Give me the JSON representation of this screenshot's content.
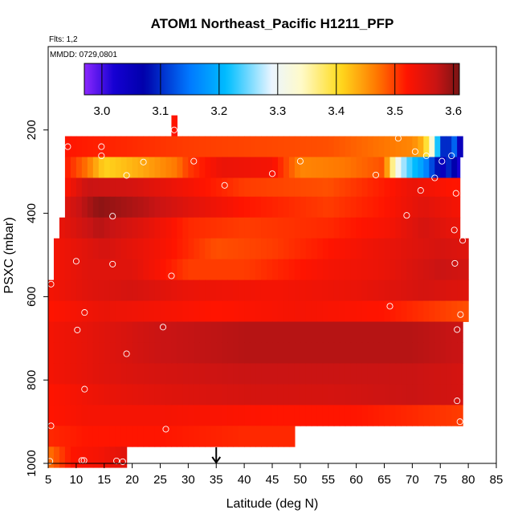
{
  "chart_data": {
    "type": "heatmap",
    "title": "ATOM1 Northeast_Pacific H1211_PFP",
    "subtitle_flights": "Flts: 1,2",
    "subtitle_dates": "MMDD: 0729,0801",
    "xlabel": "Latitude (deg N)",
    "ylabel": "PSXC (mbar)",
    "xlim": [
      5,
      85
    ],
    "ylim": [
      1000,
      0
    ],
    "x_ticks": [
      "5",
      "10",
      "15",
      "20",
      "25",
      "30",
      "35",
      "40",
      "45",
      "50",
      "55",
      "60",
      "65",
      "70",
      "75",
      "80",
      "85"
    ],
    "x_tick_values": [
      5,
      10,
      15,
      20,
      25,
      30,
      35,
      40,
      45,
      50,
      55,
      60,
      65,
      70,
      75,
      80,
      85
    ],
    "y_ticks": [
      "200",
      "400",
      "600",
      "800",
      "1000"
    ],
    "y_tick_values": [
      200,
      400,
      600,
      800,
      1000
    ],
    "colorbar": {
      "min": 2.97,
      "max": 3.61,
      "ticks": [
        "3.0",
        "3.1",
        "3.2",
        "3.3",
        "3.4",
        "3.5",
        "3.6"
      ],
      "tick_values": [
        3.0,
        3.1,
        3.2,
        3.3,
        3.4,
        3.5,
        3.6
      ]
    },
    "marker_latitude": 35,
    "bands": [
      {
        "p_top": 165,
        "p_bot": 215,
        "lat_start": 27,
        "lat_end": 28,
        "stops": [
          [
            27,
            3.52
          ]
        ]
      },
      {
        "p_top": 215,
        "p_bot": 265,
        "lat_start": 8,
        "lat_end": 79,
        "stops": [
          [
            8,
            3.52
          ],
          [
            30,
            3.5
          ],
          [
            55,
            3.49
          ],
          [
            70,
            3.46
          ],
          [
            72,
            3.43
          ],
          [
            73.5,
            3.33
          ],
          [
            74.5,
            3.22
          ],
          [
            75.5,
            3.1
          ],
          [
            76,
            3.02
          ],
          [
            77,
            3.18
          ],
          [
            78.5,
            3.05
          ]
        ]
      },
      {
        "p_top": 265,
        "p_bot": 315,
        "lat_start": 8,
        "lat_end": 78.5,
        "stops": [
          [
            8,
            3.52
          ],
          [
            12,
            3.47
          ],
          [
            15,
            3.41
          ],
          [
            20,
            3.43
          ],
          [
            28,
            3.47
          ],
          [
            30,
            3.5
          ],
          [
            36,
            3.54
          ],
          [
            45,
            3.53
          ],
          [
            50,
            3.46
          ],
          [
            58,
            3.47
          ],
          [
            65,
            3.49
          ],
          [
            66,
            3.4
          ],
          [
            67,
            3.33
          ],
          [
            68,
            3.28
          ],
          [
            70,
            3.22
          ],
          [
            72,
            3.18
          ],
          [
            74,
            3.1
          ],
          [
            75.5,
            3.05
          ],
          [
            77,
            3.12
          ],
          [
            78,
            3.02
          ]
        ]
      },
      {
        "p_top": 315,
        "p_bot": 360,
        "lat_start": 8,
        "lat_end": 78.5,
        "stops": [
          [
            8,
            3.52
          ],
          [
            12,
            3.57
          ],
          [
            20,
            3.56
          ],
          [
            30,
            3.53
          ],
          [
            40,
            3.5
          ],
          [
            55,
            3.49
          ],
          [
            66,
            3.52
          ],
          [
            70,
            3.54
          ],
          [
            77,
            3.52
          ]
        ]
      },
      {
        "p_top": 360,
        "p_bot": 410,
        "lat_start": 8,
        "lat_end": 78.5,
        "stops": [
          [
            8,
            3.55
          ],
          [
            14,
            3.6
          ],
          [
            22,
            3.58
          ],
          [
            30,
            3.55
          ],
          [
            40,
            3.52
          ],
          [
            55,
            3.5
          ],
          [
            65,
            3.52
          ],
          [
            72,
            3.55
          ],
          [
            78,
            3.53
          ]
        ]
      },
      {
        "p_top": 410,
        "p_bot": 460,
        "lat_start": 7,
        "lat_end": 78.5,
        "stops": [
          [
            7,
            3.54
          ],
          [
            14,
            3.58
          ],
          [
            22,
            3.55
          ],
          [
            30,
            3.51
          ],
          [
            40,
            3.5
          ],
          [
            55,
            3.51
          ],
          [
            66,
            3.53
          ],
          [
            72,
            3.56
          ],
          [
            78,
            3.54
          ]
        ]
      },
      {
        "p_top": 460,
        "p_bot": 510,
        "lat_start": 6,
        "lat_end": 80,
        "stops": [
          [
            6,
            3.53
          ],
          [
            15,
            3.56
          ],
          [
            25,
            3.53
          ],
          [
            35,
            3.49
          ],
          [
            45,
            3.5
          ],
          [
            55,
            3.52
          ],
          [
            65,
            3.54
          ],
          [
            75,
            3.56
          ],
          [
            80,
            3.55
          ]
        ]
      },
      {
        "p_top": 510,
        "p_bot": 560,
        "lat_start": 6,
        "lat_end": 80,
        "stops": [
          [
            6,
            3.53
          ],
          [
            12,
            3.55
          ],
          [
            20,
            3.55
          ],
          [
            30,
            3.5
          ],
          [
            40,
            3.5
          ],
          [
            55,
            3.53
          ],
          [
            65,
            3.54
          ],
          [
            75,
            3.57
          ],
          [
            80,
            3.56
          ]
        ]
      },
      {
        "p_top": 560,
        "p_bot": 610,
        "lat_start": 5,
        "lat_end": 80,
        "stops": [
          [
            5,
            3.53
          ],
          [
            12,
            3.55
          ],
          [
            20,
            3.56
          ],
          [
            30,
            3.54
          ],
          [
            45,
            3.53
          ],
          [
            60,
            3.54
          ],
          [
            72,
            3.56
          ],
          [
            80,
            3.55
          ]
        ]
      },
      {
        "p_top": 610,
        "p_bot": 660,
        "lat_start": 5,
        "lat_end": 80,
        "stops": [
          [
            5,
            3.52
          ],
          [
            15,
            3.54
          ],
          [
            25,
            3.53
          ],
          [
            35,
            3.52
          ],
          [
            50,
            3.53
          ],
          [
            65,
            3.52
          ],
          [
            75,
            3.5
          ],
          [
            80,
            3.49
          ]
        ]
      },
      {
        "p_top": 660,
        "p_bot": 710,
        "lat_start": 5,
        "lat_end": 79,
        "stops": [
          [
            5,
            3.53
          ],
          [
            15,
            3.55
          ],
          [
            25,
            3.57
          ],
          [
            40,
            3.58
          ],
          [
            55,
            3.58
          ],
          [
            70,
            3.58
          ],
          [
            79,
            3.57
          ]
        ]
      },
      {
        "p_top": 710,
        "p_bot": 760,
        "lat_start": 5,
        "lat_end": 79,
        "stops": [
          [
            5,
            3.53
          ],
          [
            15,
            3.55
          ],
          [
            25,
            3.57
          ],
          [
            40,
            3.58
          ],
          [
            55,
            3.58
          ],
          [
            70,
            3.58
          ],
          [
            79,
            3.57
          ]
        ]
      },
      {
        "p_top": 760,
        "p_bot": 810,
        "lat_start": 5,
        "lat_end": 79,
        "stops": [
          [
            5,
            3.53
          ],
          [
            15,
            3.55
          ],
          [
            25,
            3.56
          ],
          [
            40,
            3.57
          ],
          [
            55,
            3.57
          ],
          [
            70,
            3.57
          ],
          [
            79,
            3.56
          ]
        ]
      },
      {
        "p_top": 810,
        "p_bot": 860,
        "lat_start": 5,
        "lat_end": 79,
        "stops": [
          [
            5,
            3.52
          ],
          [
            15,
            3.54
          ],
          [
            25,
            3.55
          ],
          [
            40,
            3.56
          ],
          [
            55,
            3.56
          ],
          [
            70,
            3.57
          ],
          [
            79,
            3.56
          ]
        ]
      },
      {
        "p_top": 860,
        "p_bot": 910,
        "lat_start": 5,
        "lat_end": 79,
        "stops": [
          [
            5,
            3.52
          ],
          [
            12,
            3.53
          ],
          [
            25,
            3.53
          ],
          [
            45,
            3.52
          ],
          [
            60,
            3.52
          ],
          [
            70,
            3.51
          ],
          [
            79,
            3.5
          ]
        ]
      },
      {
        "p_top": 910,
        "p_bot": 960,
        "lat_start": 5,
        "lat_end": 49,
        "stops": [
          [
            5,
            3.51
          ],
          [
            12,
            3.52
          ],
          [
            25,
            3.52
          ],
          [
            40,
            3.51
          ],
          [
            49,
            3.51
          ]
        ]
      },
      {
        "p_top": 960,
        "p_bot": 1010,
        "lat_start": 5,
        "lat_end": 19,
        "stops": [
          [
            5,
            3.47
          ],
          [
            9,
            3.52
          ],
          [
            14,
            3.53
          ],
          [
            19,
            3.55
          ]
        ]
      }
    ],
    "samples": [
      [
        27.5,
        200
      ],
      [
        8.5,
        240
      ],
      [
        14.5,
        240
      ],
      [
        14.5,
        262
      ],
      [
        22,
        277
      ],
      [
        31,
        275
      ],
      [
        19,
        309
      ],
      [
        45,
        305
      ],
      [
        50,
        275
      ],
      [
        63.5,
        308
      ],
      [
        67.5,
        220
      ],
      [
        70.5,
        252
      ],
      [
        72.5,
        262
      ],
      [
        75.3,
        275
      ],
      [
        77,
        262
      ],
      [
        74,
        315
      ],
      [
        71.5,
        345
      ],
      [
        77.8,
        352
      ],
      [
        36.5,
        333
      ],
      [
        16.5,
        407
      ],
      [
        69,
        405
      ],
      [
        77.5,
        440
      ],
      [
        79,
        465
      ],
      [
        77.6,
        520
      ],
      [
        10,
        515
      ],
      [
        16.5,
        522
      ],
      [
        27,
        550
      ],
      [
        5.5,
        570
      ],
      [
        66,
        623
      ],
      [
        11.5,
        638
      ],
      [
        78.6,
        643
      ],
      [
        10.2,
        680
      ],
      [
        25.5,
        673
      ],
      [
        78,
        679
      ],
      [
        19,
        737
      ],
      [
        11.5,
        822
      ],
      [
        78,
        850
      ],
      [
        78.5,
        900
      ],
      [
        5.5,
        910
      ],
      [
        26,
        918
      ],
      [
        11,
        993
      ],
      [
        11.4,
        993
      ],
      [
        17.2,
        994
      ],
      [
        18.3,
        996
      ],
      [
        5.3,
        995
      ]
    ]
  }
}
